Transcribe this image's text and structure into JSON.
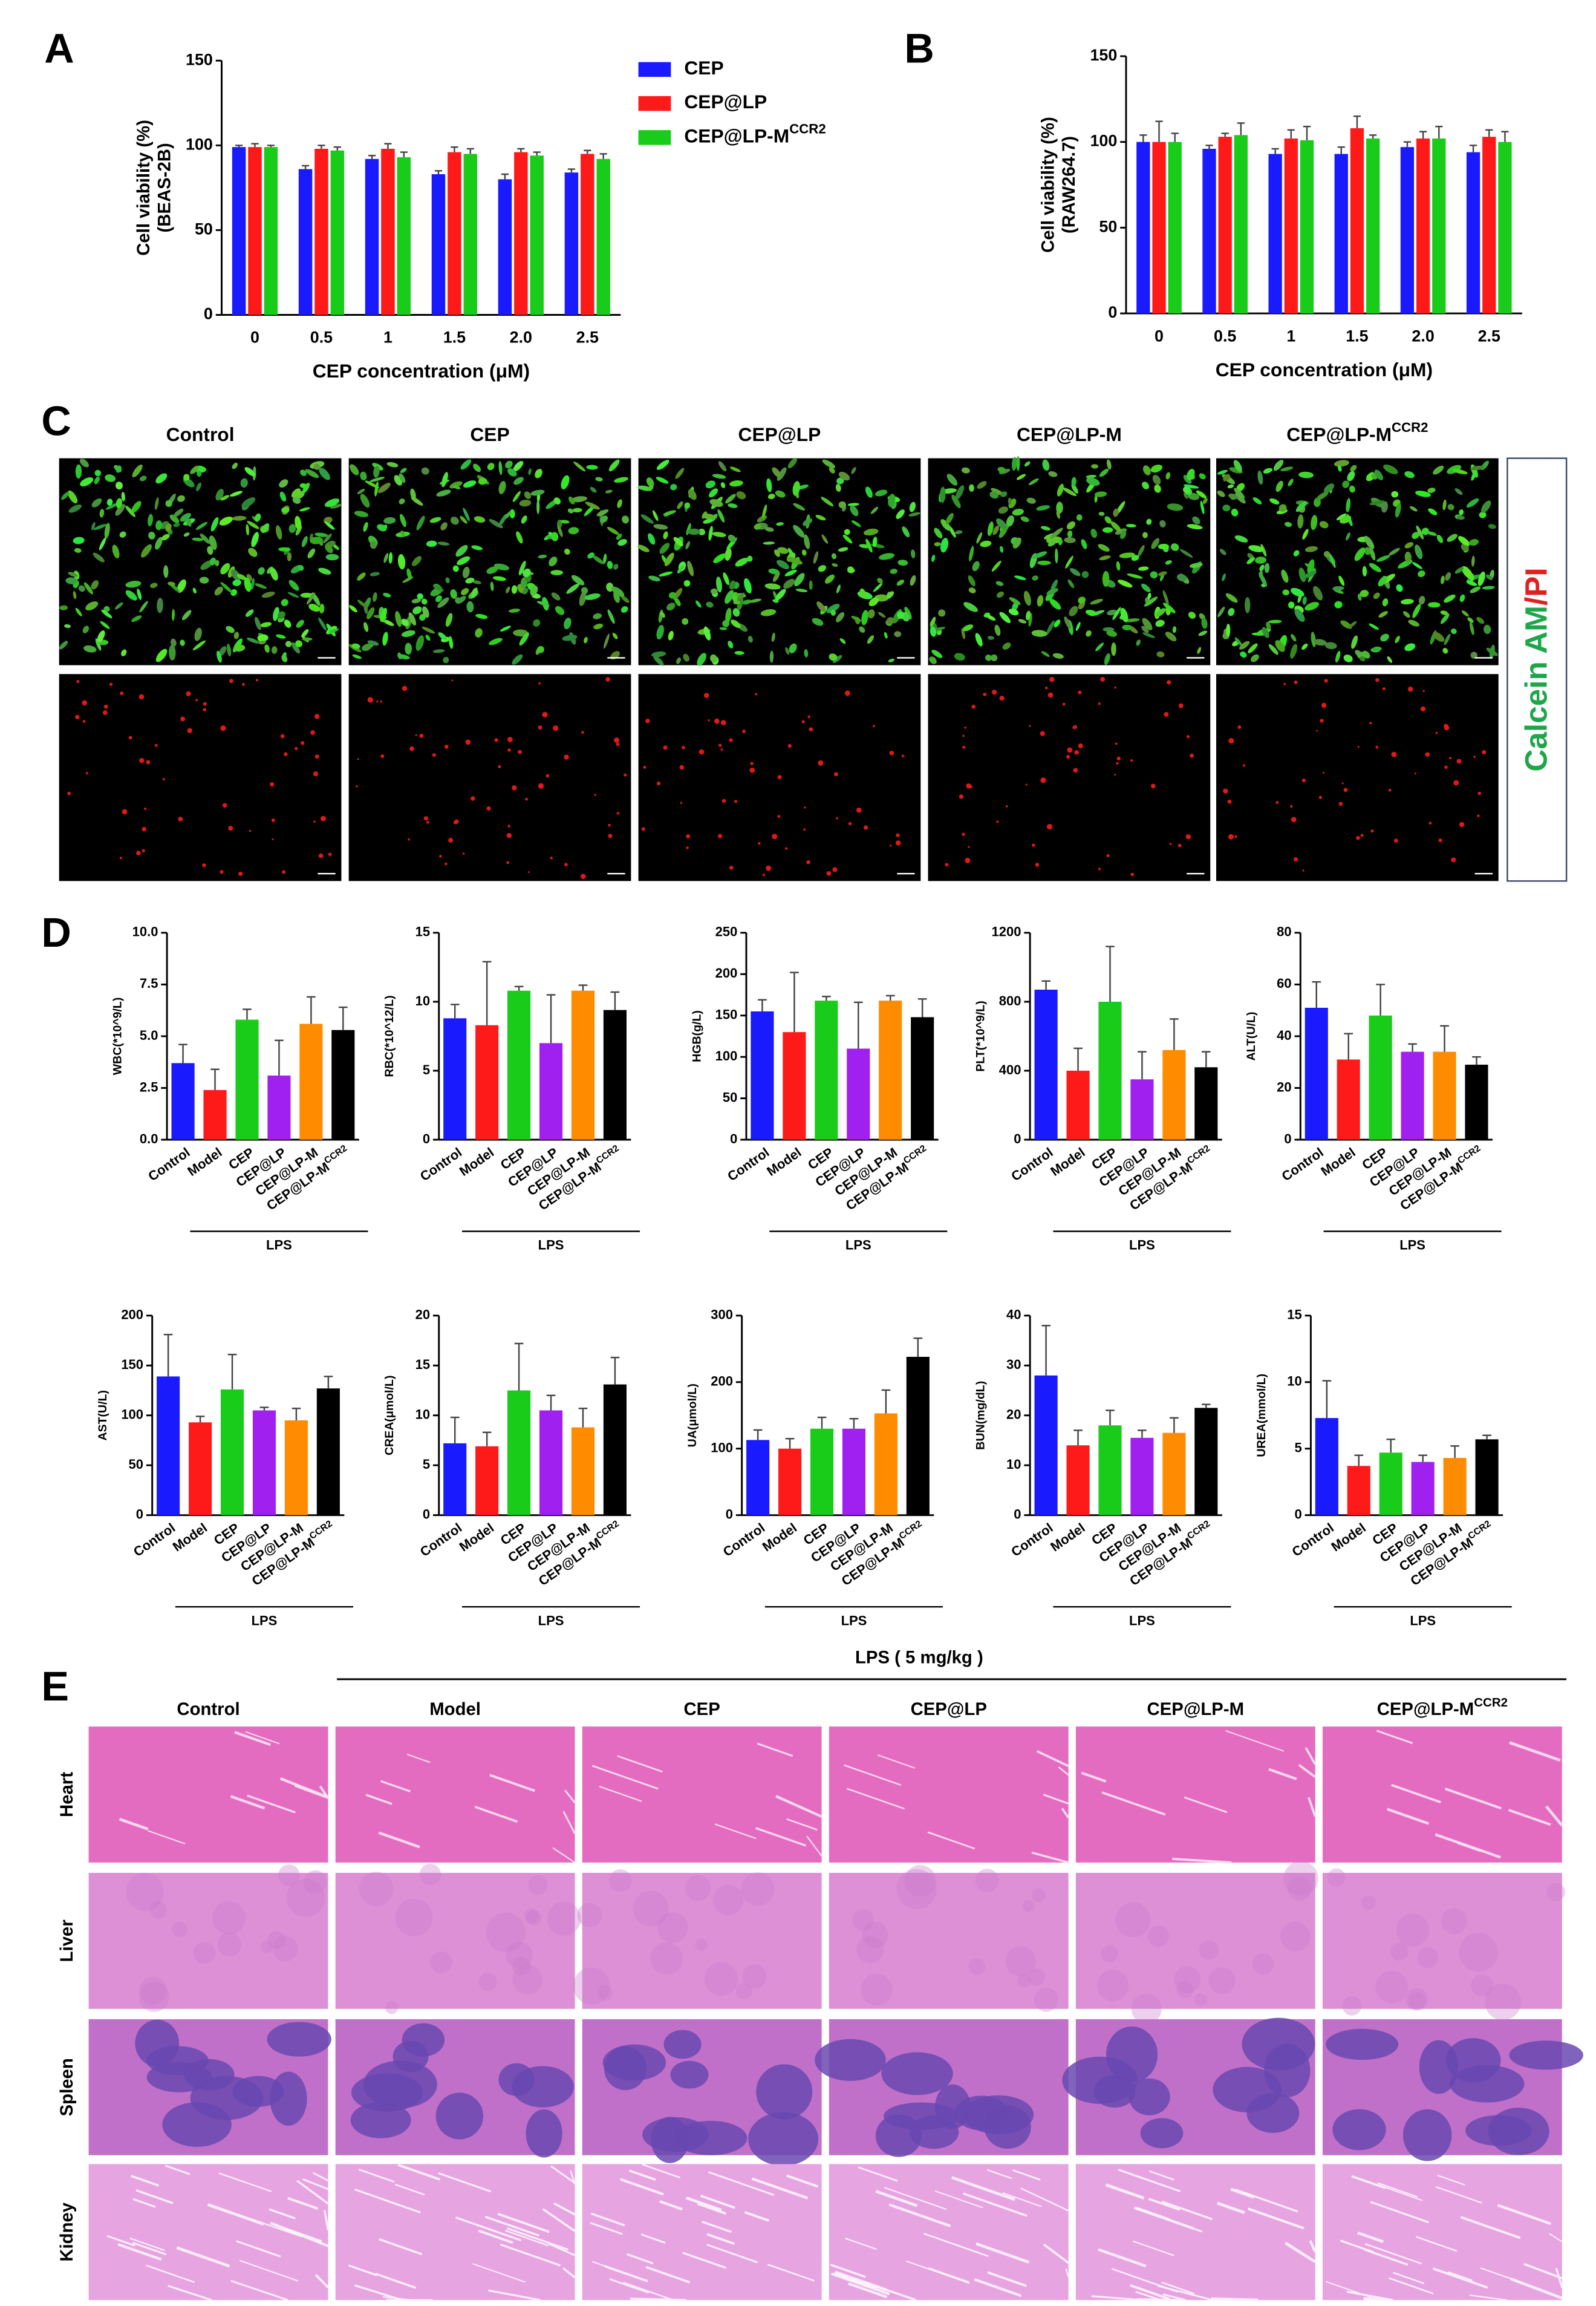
{
  "panel_labels": [
    "A",
    "B",
    "C",
    "D",
    "E"
  ],
  "chart_data": [
    {
      "type": "bar",
      "y_label": [
        "Cell viability (%)",
        "(BEAS-2B)"
      ],
      "x_label": "CEP concentration (μM)",
      "categories": [
        "0",
        "0.5",
        "1",
        "1.5",
        "2.0",
        "2.5"
      ],
      "ylim": [
        0,
        150
      ],
      "yticks": [
        0,
        50,
        100,
        150
      ],
      "legend": "right",
      "series": [
        {
          "name": "CEP",
          "color": "#1a1aff",
          "values": [
            99,
            86,
            92,
            83,
            80,
            84
          ],
          "errors": [
            1,
            2,
            2,
            2,
            3,
            2
          ]
        },
        {
          "name": "CEP@LP",
          "color": "#ff1a1a",
          "values": [
            99,
            98,
            98,
            96,
            96,
            95
          ],
          "errors": [
            2,
            2,
            3,
            3,
            2,
            2
          ]
        },
        {
          "name": "CEP@LP-M",
          "name_sup": "CCR2",
          "color": "#1acc1a",
          "values": [
            99,
            97,
            93,
            95,
            94,
            92
          ],
          "errors": [
            1,
            2,
            3,
            3,
            2,
            3
          ]
        }
      ]
    },
    {
      "type": "bar",
      "y_label": [
        "Cell viability (%)",
        "(RAW264.7)"
      ],
      "x_label": "CEP concentration (μM)",
      "categories": [
        "0",
        "0.5",
        "1",
        "1.5",
        "2.0",
        "2.5"
      ],
      "ylim": [
        0,
        150
      ],
      "yticks": [
        0,
        50,
        100,
        150
      ],
      "series": [
        {
          "color": "#1a1aff",
          "values": [
            100,
            96,
            93,
            93,
            97,
            94
          ],
          "errors": [
            4,
            2,
            3,
            4,
            3,
            4
          ]
        },
        {
          "color": "#ff1a1a",
          "values": [
            100,
            103,
            102,
            108,
            102,
            103
          ],
          "errors": [
            12,
            2,
            5,
            7,
            4,
            4
          ]
        },
        {
          "color": "#1acc1a",
          "values": [
            100,
            104,
            101,
            102,
            102,
            100
          ],
          "errors": [
            5,
            7,
            8,
            2,
            7,
            6
          ]
        }
      ]
    },
    {
      "type": "bar",
      "y_label": "WBC(*10^9/L)",
      "categories": [
        "Control",
        "Model",
        "CEP",
        "CEP@LP",
        "CEP@LP-M",
        "CEP@LP-M"
      ],
      "superscripts": [
        null,
        null,
        null,
        null,
        null,
        "CCR2"
      ],
      "colors": [
        "#1a1aff",
        "#ff1a1a",
        "#1acc1a",
        "#a020f0",
        "#ff8c00",
        "#000000"
      ],
      "values": [
        3.7,
        2.4,
        5.8,
        3.1,
        5.6,
        5.3
      ],
      "errors": [
        0.9,
        1.0,
        0.5,
        1.7,
        1.3,
        1.1
      ],
      "ylim": [
        0,
        10
      ],
      "yticks": [
        {
          "value": 0,
          "label": "0.0"
        },
        2.5,
        {
          "value": 5,
          "label": "5.0"
        },
        7.5,
        {
          "value": 10,
          "label": "10.0"
        }
      ],
      "bracket_label": "LPS"
    },
    {
      "type": "bar",
      "y_label": "RBC(*10^12/L)",
      "categories": [
        "Control",
        "Model",
        "CEP",
        "CEP@LP",
        "CEP@LP-M",
        "CEP@LP-M"
      ],
      "superscripts": [
        null,
        null,
        null,
        null,
        null,
        "CCR2"
      ],
      "colors": [
        "#1a1aff",
        "#ff1a1a",
        "#1acc1a",
        "#a020f0",
        "#ff8c00",
        "#000000"
      ],
      "values": [
        8.8,
        8.3,
        10.8,
        7.0,
        10.8,
        9.4
      ],
      "errors": [
        1.0,
        4.6,
        0.3,
        3.5,
        0.4,
        1.3
      ],
      "ylim": [
        0,
        15
      ],
      "yticks": [
        0,
        5,
        10,
        15
      ],
      "bracket_label": "LPS"
    },
    {
      "type": "bar",
      "y_label": "HGB(g/L)",
      "categories": [
        "Control",
        "Model",
        "CEP",
        "CEP@LP",
        "CEP@LP-M",
        "CEP@LP-M"
      ],
      "superscripts": [
        null,
        null,
        null,
        null,
        null,
        "CCR2"
      ],
      "colors": [
        "#1a1aff",
        "#ff1a1a",
        "#1acc1a",
        "#a020f0",
        "#ff8c00",
        "#000000"
      ],
      "values": [
        155,
        130,
        168,
        110,
        168,
        148
      ],
      "errors": [
        14,
        72,
        5,
        56,
        6,
        22
      ],
      "ylim": [
        0,
        250
      ],
      "yticks": [
        0,
        50,
        100,
        150,
        200,
        250
      ],
      "bracket_label": "LPS"
    },
    {
      "type": "bar",
      "y_label": "PLT(*10^9/L)",
      "categories": [
        "Control",
        "Model",
        "CEP",
        "CEP@LP",
        "CEP@LP-M",
        "CEP@LP-M"
      ],
      "superscripts": [
        null,
        null,
        null,
        null,
        null,
        "CCR2"
      ],
      "colors": [
        "#1a1aff",
        "#ff1a1a",
        "#1acc1a",
        "#a020f0",
        "#ff8c00",
        "#000000"
      ],
      "values": [
        870,
        400,
        800,
        350,
        520,
        420
      ],
      "errors": [
        50,
        130,
        320,
        160,
        180,
        90
      ],
      "ylim": [
        0,
        1200
      ],
      "yticks": [
        0,
        400,
        800,
        1200
      ],
      "bracket_label": "LPS"
    },
    {
      "type": "bar",
      "y_label": "ALT(U/L)",
      "categories": [
        "Control",
        "Model",
        "CEP",
        "CEP@LP",
        "CEP@LP-M",
        "CEP@LP-M"
      ],
      "superscripts": [
        null,
        null,
        null,
        null,
        null,
        "CCR2"
      ],
      "colors": [
        "#1a1aff",
        "#ff1a1a",
        "#1acc1a",
        "#a020f0",
        "#ff8c00",
        "#000000"
      ],
      "values": [
        51,
        31,
        48,
        34,
        34,
        29
      ],
      "errors": [
        10,
        10,
        12,
        3,
        10,
        3
      ],
      "ylim": [
        0,
        80
      ],
      "yticks": [
        0,
        20,
        40,
        60,
        80
      ],
      "bracket_label": "LPS"
    },
    {
      "type": "bar",
      "y_label": "AST(U/L)",
      "categories": [
        "Control",
        "Model",
        "CEP",
        "CEP@LP",
        "CEP@LP-M",
        "CEP@LP-M"
      ],
      "superscripts": [
        null,
        null,
        null,
        null,
        null,
        "CCR2"
      ],
      "colors": [
        "#1a1aff",
        "#ff1a1a",
        "#1acc1a",
        "#a020f0",
        "#ff8c00",
        "#000000"
      ],
      "values": [
        139,
        93,
        126,
        105,
        95,
        127
      ],
      "errors": [
        42,
        6,
        35,
        3,
        12,
        12
      ],
      "ylim": [
        0,
        200
      ],
      "yticks": [
        0,
        50,
        100,
        150,
        200
      ],
      "bracket_label": "LPS"
    },
    {
      "type": "bar",
      "y_label": "CREA(μmol/L)",
      "categories": [
        "Control",
        "Model",
        "CEP",
        "CEP@LP",
        "CEP@LP-M",
        "CEP@LP-M"
      ],
      "superscripts": [
        null,
        null,
        null,
        null,
        null,
        "CCR2"
      ],
      "colors": [
        "#1a1aff",
        "#ff1a1a",
        "#1acc1a",
        "#a020f0",
        "#ff8c00",
        "#000000"
      ],
      "values": [
        7.2,
        6.9,
        12.5,
        10.5,
        8.8,
        13.1
      ],
      "errors": [
        2.6,
        1.4,
        4.7,
        1.5,
        1.9,
        2.7
      ],
      "ylim": [
        0,
        20
      ],
      "yticks": [
        0,
        5,
        10,
        15,
        20
      ],
      "bracket_label": "LPS"
    },
    {
      "type": "bar",
      "y_label": "UA(μmol/L)",
      "categories": [
        "Control",
        "Model",
        "CEP",
        "CEP@LP",
        "CEP@LP-M",
        "CEP@LP-M"
      ],
      "superscripts": [
        null,
        null,
        null,
        null,
        null,
        "CCR2"
      ],
      "colors": [
        "#1a1aff",
        "#ff1a1a",
        "#1acc1a",
        "#a020f0",
        "#ff8c00",
        "#000000"
      ],
      "values": [
        113,
        100,
        130,
        130,
        153,
        238
      ],
      "errors": [
        15,
        15,
        17,
        15,
        35,
        28
      ],
      "ylim": [
        0,
        300
      ],
      "yticks": [
        0,
        100,
        200,
        300
      ],
      "bracket_label": "LPS"
    },
    {
      "type": "bar",
      "y_label": "BUN(mg/dL)",
      "categories": [
        "Control",
        "Model",
        "CEP",
        "CEP@LP",
        "CEP@LP-M",
        "CEP@LP-M"
      ],
      "superscripts": [
        null,
        null,
        null,
        null,
        null,
        "CCR2"
      ],
      "colors": [
        "#1a1aff",
        "#ff1a1a",
        "#1acc1a",
        "#a020f0",
        "#ff8c00",
        "#000000"
      ],
      "values": [
        28,
        14,
        18,
        15.5,
        16.5,
        21.5
      ],
      "errors": [
        10,
        3,
        3,
        1.5,
        3,
        0.7
      ],
      "ylim": [
        0,
        40
      ],
      "yticks": [
        0,
        10,
        20,
        30,
        40
      ],
      "bracket_label": "LPS"
    },
    {
      "type": "bar",
      "y_label": "UREA(mmol/L)",
      "categories": [
        "Control",
        "Model",
        "CEP",
        "CEP@LP",
        "CEP@LP-M",
        "CEP@LP-M"
      ],
      "superscripts": [
        null,
        null,
        null,
        null,
        null,
        "CCR2"
      ],
      "colors": [
        "#1a1aff",
        "#ff1a1a",
        "#1acc1a",
        "#a020f0",
        "#ff8c00",
        "#000000"
      ],
      "values": [
        7.3,
        3.7,
        4.7,
        4.0,
        4.3,
        5.7
      ],
      "errors": [
        2.8,
        0.8,
        1.0,
        0.5,
        0.9,
        0.3
      ],
      "ylim": [
        0,
        15
      ],
      "yticks": [
        0,
        5,
        10,
        15
      ],
      "bracket_label": "LPS"
    }
  ],
  "panel_c": {
    "columns": [
      "Control",
      "CEP",
      "CEP@LP",
      "CEP@LP-M",
      "CEP@LP-M"
    ],
    "superscripts": [
      null,
      null,
      null,
      null,
      "CCR2"
    ],
    "side_label": [
      "Calcein AM",
      "/PI"
    ]
  },
  "panel_e": {
    "header": "LPS ( 5 mg/kg )",
    "columns": [
      "Control",
      "Model",
      "CEP",
      "CEP@LP",
      "CEP@LP-M",
      "CEP@LP-M"
    ],
    "superscripts": [
      null,
      null,
      null,
      null,
      null,
      "CCR2"
    ],
    "rows": [
      "Heart",
      "Liver",
      "Spleen",
      "Kidney"
    ]
  }
}
